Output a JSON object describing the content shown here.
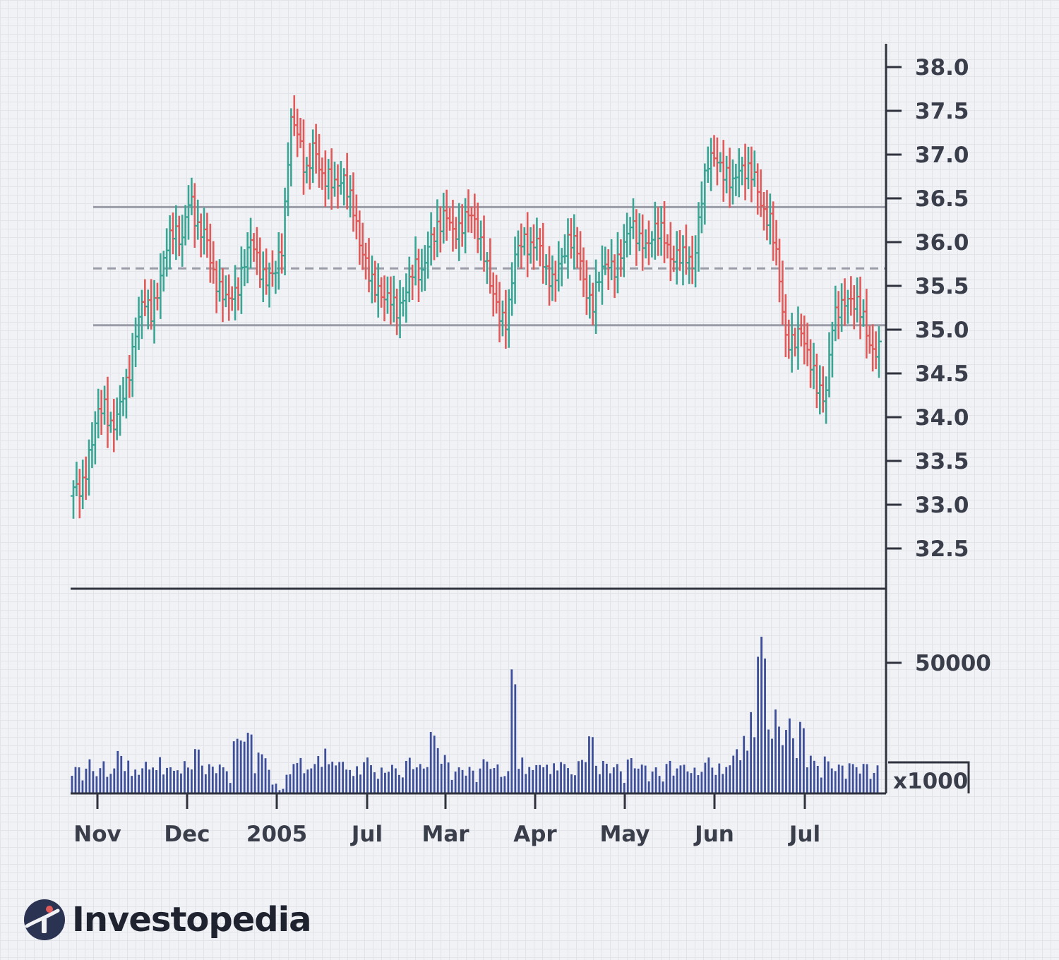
{
  "chart_data": {
    "type": "ohlc",
    "price_axis": {
      "ticks": [
        "38.0",
        "37.5",
        "37.0",
        "36.5",
        "36.0",
        "35.5",
        "35.0",
        "34.5",
        "34.0",
        "33.5",
        "33.0",
        "32.5"
      ],
      "ylim": [
        32.0,
        38.2
      ]
    },
    "volume_axis": {
      "ticks": [
        "50000"
      ],
      "unit_label": "x1000",
      "ylim": [
        0,
        72000
      ]
    },
    "x_tick_labels": [
      "Nov",
      "Dec",
      "2005",
      "Jul",
      "Mar",
      "Apr",
      "May",
      "Jun",
      "Jul"
    ],
    "reference_lines": [
      {
        "value": 36.4,
        "style": "solid"
      },
      {
        "value": 35.7,
        "style": "dashed"
      },
      {
        "value": 35.05,
        "style": "solid"
      }
    ],
    "price_anchors": [
      33.2,
      33.1,
      33.6,
      34.0,
      34.1,
      33.9,
      34.1,
      34.4,
      35.0,
      35.3,
      35.2,
      35.5,
      35.9,
      36.2,
      36.0,
      36.5,
      36.2,
      36.1,
      35.6,
      35.5,
      35.3,
      35.4,
      35.8,
      36.0,
      35.7,
      35.6,
      35.6,
      36.0,
      37.4,
      37.2,
      36.8,
      37.1,
      36.7,
      36.8,
      36.6,
      36.7,
      36.5,
      35.9,
      35.7,
      35.5,
      35.3,
      35.4,
      35.2,
      35.4,
      35.8,
      35.6,
      36.0,
      36.2,
      36.3,
      36.1,
      36.2,
      36.3,
      36.2,
      35.9,
      35.4,
      35.2,
      35.1,
      35.8,
      36.1,
      35.9,
      36.0,
      35.7,
      35.5,
      35.8,
      36.1,
      35.9,
      35.5,
      35.3,
      35.6,
      35.8,
      35.7,
      35.9,
      36.3,
      36.0,
      35.9,
      36.2,
      36.1,
      35.8,
      35.9,
      35.8,
      35.7,
      36.5,
      36.9,
      37.0,
      36.8,
      36.6,
      36.9,
      36.8,
      36.7,
      36.4,
      36.2,
      35.7,
      34.9,
      34.8,
      35.0,
      34.7,
      34.3,
      34.2,
      35.1,
      35.2,
      35.4,
      35.3,
      35.1,
      34.8,
      34.75
    ],
    "volume_anchors": [
      9000,
      8000,
      11000,
      7000,
      10000,
      9000,
      13000,
      11000,
      9000,
      8000,
      10000,
      12000,
      9000,
      8000,
      11000,
      10000,
      14000,
      12000,
      9000,
      10000,
      8000,
      17000,
      21000,
      19000,
      15000,
      12000,
      3000,
      2000,
      6000,
      12000,
      11000,
      9000,
      13000,
      15000,
      12000,
      10000,
      9000,
      9000,
      11000,
      10000,
      8000,
      9000,
      8000,
      10000,
      12000,
      9000,
      20000,
      18000,
      12000,
      10000,
      8000,
      9000,
      7000,
      11000,
      10000,
      9000,
      8000,
      38000,
      12000,
      10000,
      9000,
      11000,
      10000,
      11000,
      9000,
      10000,
      13000,
      18000,
      12000,
      10000,
      9000,
      8000,
      11000,
      10000,
      9000,
      8000,
      6000,
      10000,
      11000,
      9000,
      8000,
      10000,
      11000,
      9000,
      10000,
      12000,
      14000,
      22000,
      27000,
      48000,
      30000,
      26000,
      20000,
      24000,
      22000,
      13000,
      10000,
      12000,
      10000,
      9000,
      11000,
      9000,
      10000,
      9000,
      9000
    ]
  },
  "brand": {
    "name": "Investopedia",
    "mark_color": "#2b3352",
    "accent_color": "#e05a5a"
  },
  "colors": {
    "up": "#3aa594",
    "down": "#e05a5a",
    "volume": "#3d4f9a",
    "axis": "#30323d",
    "reference": "#9a9da8"
  }
}
